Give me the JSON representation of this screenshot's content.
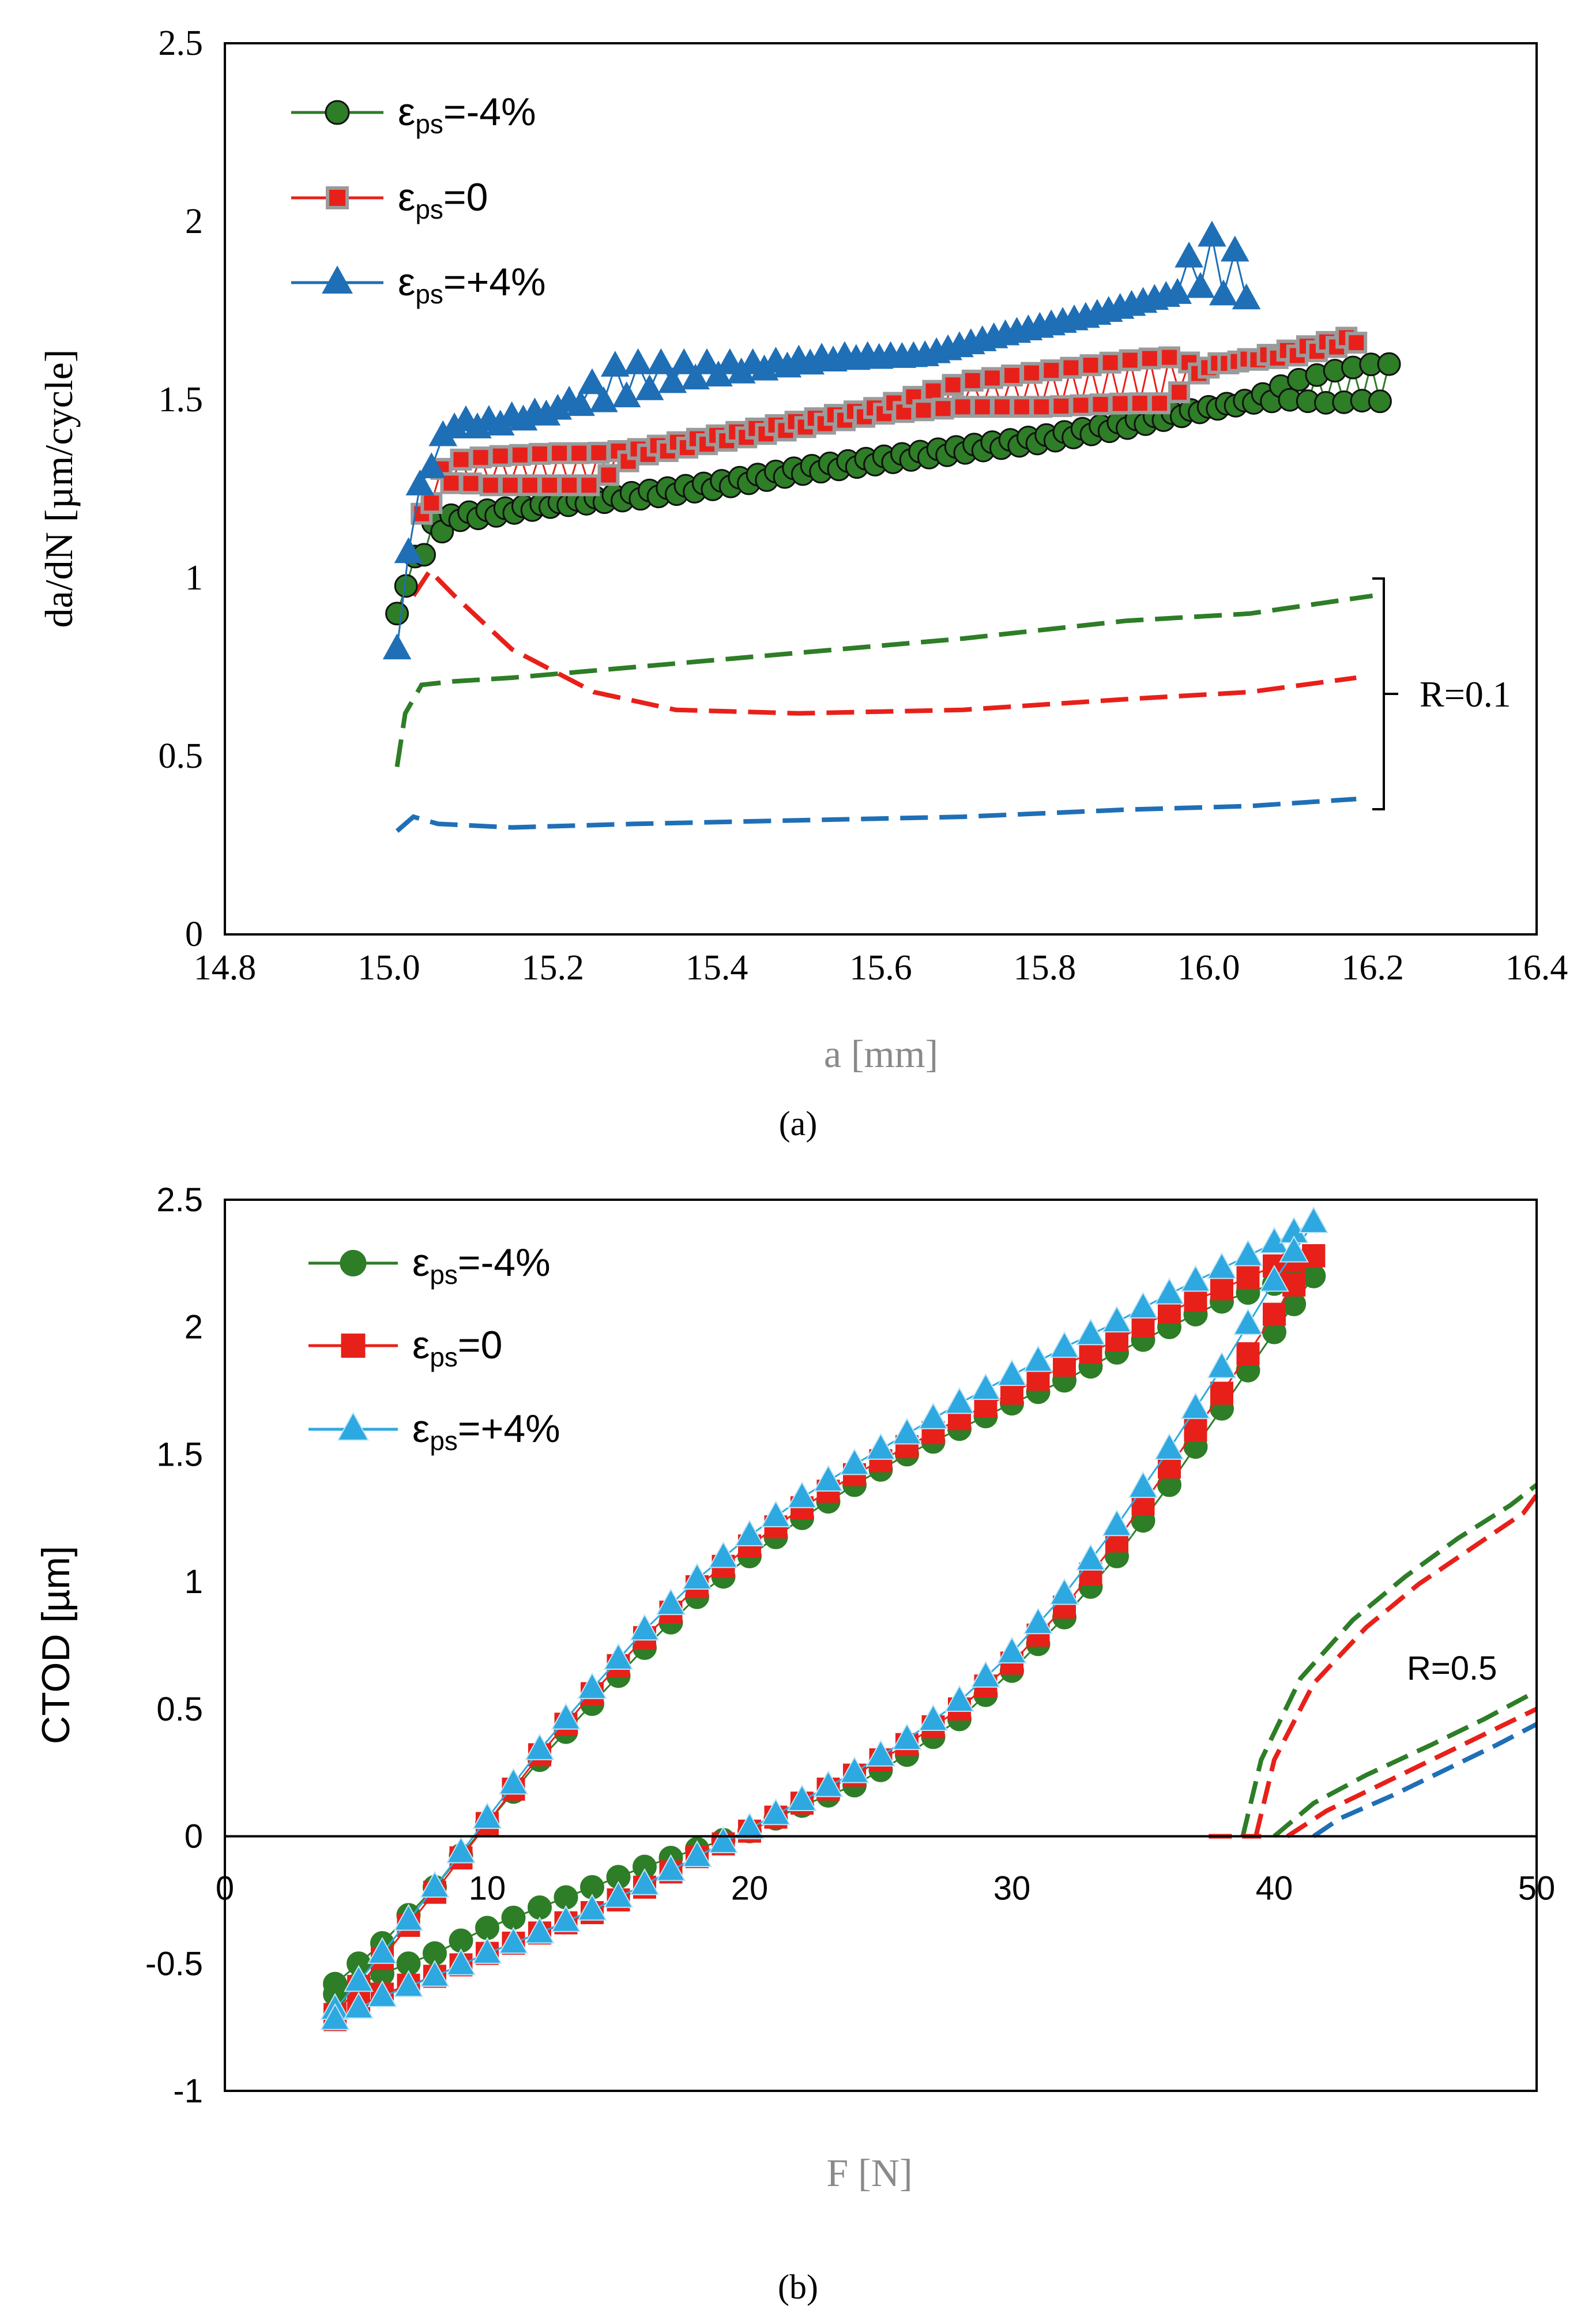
{
  "figure": {
    "panel_a_caption": "(a)",
    "panel_b_caption": "(b)"
  },
  "chart_data": [
    {
      "type": "scatter",
      "panel": "a",
      "xlabel": "a [mm]",
      "ylabel": "da/dN [µm/cycle]",
      "xlim": [
        14.8,
        16.4
      ],
      "ylim": [
        0,
        2.5
      ],
      "xticks": [
        "14.8",
        "15.0",
        "15.2",
        "15.4",
        "15.6",
        "15.8",
        "16.0",
        "16.2",
        "16.4"
      ],
      "yticks": [
        "0",
        "0.5",
        "1",
        "1.5",
        "2",
        "2.5"
      ],
      "grid": false,
      "legend_position": "top-left",
      "legend": [
        {
          "sym": "ε",
          "sub": "ps",
          "val": "=-4%"
        },
        {
          "sym": "ε",
          "sub": "ps",
          "val": "=0"
        },
        {
          "sym": "ε",
          "sub": "ps",
          "val": "=+4%"
        }
      ],
      "annotation": "R=0.1",
      "colors": {
        "green": "#2e7d27",
        "red": "#e8201a",
        "blue": "#1f6fb6",
        "gray": "#9b9b9b"
      },
      "series": [
        {
          "name": "εps=-4% (marker)",
          "style": "markers",
          "x": [
            15.01,
            15.03,
            15.05,
            15.08,
            15.12,
            15.2,
            15.3,
            15.4,
            15.5,
            15.6,
            15.7,
            15.8,
            15.9,
            16.0,
            16.05,
            16.1,
            16.15,
            16.2,
            16.22
          ],
          "y": [
            0.9,
            1.05,
            1.15,
            1.18,
            1.19,
            1.21,
            1.24,
            1.27,
            1.31,
            1.34,
            1.37,
            1.4,
            1.44,
            1.48,
            1.5,
            1.55,
            1.58,
            1.6,
            1.6
          ],
          "y_alt": [
            0.95,
            1.0,
            1.1,
            1.16,
            1.17,
            1.2,
            1.22,
            1.25,
            1.29,
            1.32,
            1.35,
            1.38,
            1.42,
            1.47,
            1.49,
            1.5,
            1.49,
            1.5,
            1.49
          ]
        },
        {
          "name": "εps=0 (marker)",
          "style": "markers",
          "x": [
            15.04,
            15.06,
            15.08,
            15.12,
            15.2,
            15.25,
            15.3,
            15.4,
            15.5,
            15.6,
            15.7,
            15.8,
            15.9,
            15.95,
            16.0,
            16.1,
            16.18
          ],
          "y": [
            1.18,
            1.3,
            1.33,
            1.34,
            1.35,
            1.35,
            1.36,
            1.4,
            1.44,
            1.48,
            1.55,
            1.58,
            1.61,
            1.62,
            1.59,
            1.64,
            1.68
          ],
          "y_alt": [
            1.15,
            1.25,
            1.27,
            1.26,
            1.26,
            1.26,
            1.34,
            1.38,
            1.42,
            1.46,
            1.48,
            1.48,
            1.49,
            1.49,
            1.6,
            1.62,
            1.66
          ]
        },
        {
          "name": "εps=+4% (marker)",
          "style": "markers",
          "x": [
            15.01,
            15.03,
            15.05,
            15.08,
            15.12,
            15.2,
            15.28,
            15.35,
            15.45,
            15.55,
            15.65,
            15.75,
            15.85,
            15.95,
            16.0,
            16.02,
            16.04,
            16.05
          ],
          "y": [
            0.8,
            1.2,
            1.35,
            1.44,
            1.44,
            1.47,
            1.5,
            1.55,
            1.58,
            1.61,
            1.62,
            1.68,
            1.73,
            1.79,
            1.82,
            1.79,
            1.8,
            1.77
          ],
          "y_alt": [
            1.0,
            1.1,
            1.3,
            1.42,
            1.42,
            1.46,
            1.6,
            1.6,
            1.6,
            1.62,
            1.62,
            1.68,
            1.73,
            1.79,
            2.0,
            1.79,
            2.0,
            1.8
          ]
        },
        {
          "name": "εps=-4% R=0.1",
          "style": "dashed",
          "x": [
            15.01,
            15.02,
            15.04,
            15.08,
            15.15,
            15.3,
            15.5,
            15.7,
            15.9,
            16.05,
            16.2
          ],
          "y": [
            0.47,
            0.62,
            0.7,
            0.71,
            0.72,
            0.75,
            0.79,
            0.83,
            0.88,
            0.9,
            0.95
          ]
        },
        {
          "name": "εps=0 R=0.1",
          "style": "dashed",
          "x": [
            15.03,
            15.05,
            15.08,
            15.15,
            15.25,
            15.35,
            15.5,
            15.7,
            15.9,
            16.05,
            16.18
          ],
          "y": [
            0.95,
            1.02,
            0.95,
            0.8,
            0.68,
            0.63,
            0.62,
            0.63,
            0.66,
            0.68,
            0.72
          ]
        },
        {
          "name": "εps=+4% R=0.1",
          "style": "dashed",
          "x": [
            15.01,
            15.03,
            15.06,
            15.15,
            15.3,
            15.5,
            15.7,
            15.9,
            16.05,
            16.18
          ],
          "y": [
            0.29,
            0.33,
            0.31,
            0.3,
            0.31,
            0.32,
            0.33,
            0.35,
            0.36,
            0.38
          ]
        }
      ]
    },
    {
      "type": "scatter",
      "panel": "b",
      "xlabel": "F [N]",
      "ylabel": "CTOD [µm]",
      "xlim": [
        0,
        50
      ],
      "ylim": [
        -1,
        2.5
      ],
      "xticks": [
        "0",
        "10",
        "20",
        "30",
        "40",
        "50"
      ],
      "yticks": [
        "-1",
        "-0.5",
        "0",
        "0.5",
        "1",
        "1.5",
        "2",
        "2.5"
      ],
      "grid": false,
      "legend_position": "top-left",
      "legend": [
        {
          "sym": "ε",
          "sub": "ps",
          "val": "=-4%"
        },
        {
          "sym": "ε",
          "sub": "ps",
          "val": "=0"
        },
        {
          "sym": "ε",
          "sub": "ps",
          "val": "=+4%"
        }
      ],
      "annotation": "R=0.5",
      "colors": {
        "green": "#2e7d27",
        "red": "#e8201a",
        "blue": "#1f6fb6",
        "lightblue": "#2ea8e0"
      },
      "loops": [
        {
          "name": "εps=-4%",
          "loading_x": [
            4.2,
            6,
            8,
            10,
            12,
            14,
            16,
            18,
            20,
            22,
            24,
            26,
            28,
            30,
            32,
            34,
            36,
            38,
            40,
            41.5
          ],
          "loading_y": [
            -0.58,
            -0.42,
            -0.2,
            0.05,
            0.3,
            0.52,
            0.74,
            0.94,
            1.1,
            1.25,
            1.38,
            1.5,
            1.6,
            1.7,
            1.79,
            1.9,
            2.0,
            2.1,
            2.17,
            2.2
          ],
          "unloading_x": [
            41.5,
            40,
            38,
            36,
            34,
            32,
            30,
            28,
            26,
            24,
            22,
            20,
            18,
            16,
            14,
            12,
            10,
            8,
            6,
            4.2
          ],
          "unloading_y": [
            2.2,
            1.98,
            1.68,
            1.38,
            1.1,
            0.86,
            0.65,
            0.46,
            0.32,
            0.2,
            0.12,
            0.02,
            -0.05,
            -0.12,
            -0.2,
            -0.28,
            -0.36,
            -0.46,
            -0.54,
            -0.62
          ]
        },
        {
          "name": "εps=0",
          "loading_x": [
            4.2,
            6,
            8,
            10,
            12,
            14,
            16,
            18,
            20,
            22,
            24,
            26,
            28,
            30,
            32,
            34,
            36,
            38,
            40,
            41.5
          ],
          "loading_y": [
            -0.7,
            -0.48,
            -0.22,
            0.05,
            0.32,
            0.56,
            0.78,
            0.98,
            1.14,
            1.29,
            1.42,
            1.53,
            1.64,
            1.74,
            1.85,
            1.95,
            2.06,
            2.15,
            2.24,
            2.28
          ],
          "unloading_x": [
            41.5,
            40,
            38,
            36,
            34,
            32,
            30,
            28,
            26,
            24,
            22,
            20,
            18,
            16,
            14,
            12,
            10,
            8,
            6,
            4.2
          ],
          "unloading_y": [
            2.28,
            2.05,
            1.74,
            1.45,
            1.16,
            0.9,
            0.68,
            0.5,
            0.36,
            0.24,
            0.13,
            0.02,
            -0.08,
            -0.2,
            -0.3,
            -0.38,
            -0.46,
            -0.55,
            -0.62,
            -0.72
          ]
        },
        {
          "name": "εps=+4%",
          "loading_x": [
            4.2,
            6,
            8,
            10,
            12,
            14,
            16,
            18,
            20,
            22,
            24,
            26,
            28,
            30,
            32,
            34,
            36,
            38,
            40,
            41.5
          ],
          "loading_y": [
            -0.68,
            -0.46,
            -0.2,
            0.07,
            0.34,
            0.58,
            0.81,
            1.01,
            1.18,
            1.33,
            1.46,
            1.58,
            1.7,
            1.81,
            1.92,
            2.02,
            2.13,
            2.23,
            2.33,
            2.41
          ],
          "unloading_x": [
            41.5,
            40,
            38,
            36,
            34,
            32,
            30,
            28,
            26,
            24,
            22,
            20,
            18,
            16,
            14,
            12,
            10,
            8,
            6,
            4.2
          ],
          "unloading_y": [
            2.41,
            2.18,
            1.84,
            1.52,
            1.22,
            0.95,
            0.72,
            0.53,
            0.38,
            0.25,
            0.14,
            0.03,
            -0.08,
            -0.19,
            -0.29,
            -0.38,
            -0.46,
            -0.55,
            -0.63,
            -0.72
          ]
        }
      ],
      "dashed": [
        {
          "name": "εps=-4% R=0.5 upper",
          "x": [
            38.8,
            39.5,
            41,
            43,
            45,
            47,
            49,
            50
          ],
          "y": [
            0,
            0.3,
            0.62,
            0.85,
            1.02,
            1.17,
            1.3,
            1.38
          ]
        },
        {
          "name": "εps=0 R=0.5 upper",
          "x": [
            39.3,
            40,
            41.5,
            43.5,
            45.5,
            47.5,
            49.5,
            50
          ],
          "y": [
            0,
            0.3,
            0.6,
            0.82,
            0.99,
            1.13,
            1.27,
            1.34
          ]
        },
        {
          "name": "εps=0 R=0.5 base",
          "x": [
            37.5,
            39.5
          ],
          "y": [
            0,
            0
          ]
        },
        {
          "name": "εps=-4% R=0.5 lower",
          "x": [
            40,
            41.5,
            43.5,
            46,
            48,
            50
          ],
          "y": [
            0,
            0.13,
            0.24,
            0.36,
            0.46,
            0.57
          ]
        },
        {
          "name": "εps=0 R=0.5 lower",
          "x": [
            40.5,
            42,
            44,
            46,
            48,
            50
          ],
          "y": [
            0,
            0.1,
            0.2,
            0.3,
            0.4,
            0.5
          ]
        },
        {
          "name": "εps=+4% R=0.5 lower",
          "x": [
            41.5,
            42.5,
            44.5,
            46.5,
            48.5,
            50
          ],
          "y": [
            0,
            0.07,
            0.16,
            0.26,
            0.36,
            0.44
          ]
        }
      ]
    }
  ]
}
